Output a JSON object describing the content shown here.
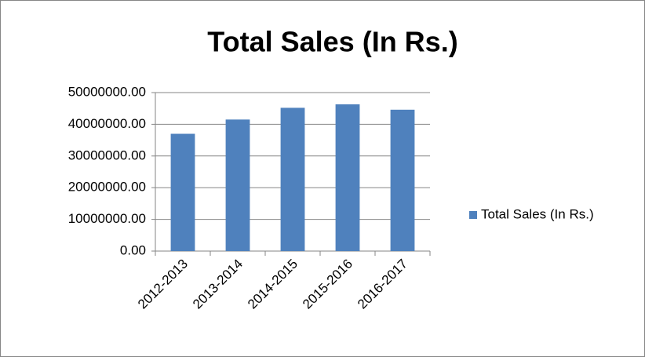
{
  "chart_data": {
    "type": "bar",
    "title": "Total Sales (In Rs.)",
    "categories": [
      "2012-2013",
      "2013-2014",
      "2014-2015",
      "2015-2016",
      "2016-2017"
    ],
    "series": [
      {
        "name": "Total Sales (In Rs.)",
        "color": "#4f81bd",
        "values": [
          37000000,
          41500000,
          45200000,
          46300000,
          44600000
        ]
      }
    ],
    "ylim": [
      0,
      50000000
    ],
    "yticks": [
      {
        "value": 0,
        "label": "0.00"
      },
      {
        "value": 10000000,
        "label": "10000000.00"
      },
      {
        "value": 20000000,
        "label": "20000000.00"
      },
      {
        "value": 30000000,
        "label": "30000000.00"
      },
      {
        "value": 40000000,
        "label": "40000000.00"
      },
      {
        "value": 50000000,
        "label": "50000000.00"
      }
    ],
    "grid": true,
    "legend": "right"
  }
}
